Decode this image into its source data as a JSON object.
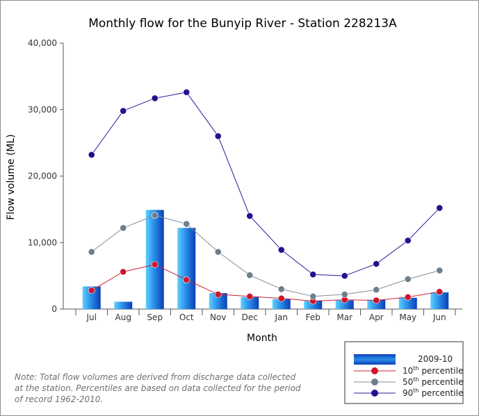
{
  "chart_data": {
    "type": "bar",
    "title": "Monthly flow for the Bunyip River - Station 228213A",
    "xlabel": "Month",
    "ylabel": "Flow volume (ML)",
    "ylim": [
      0,
      40000
    ],
    "yticks": [
      0,
      10000,
      20000,
      30000,
      40000
    ],
    "ytick_labels": [
      "0",
      "10,000",
      "20,000",
      "30,000",
      "40,000"
    ],
    "grid": false,
    "legend_position": "bottom-right",
    "categories": [
      "Jul",
      "Aug",
      "Sep",
      "Oct",
      "Nov",
      "Dec",
      "Jan",
      "Feb",
      "Mar",
      "Apr",
      "May",
      "Jun"
    ],
    "bar_series": {
      "name": "2009-10",
      "color": "#1a6fd6",
      "values": [
        3400,
        1100,
        14900,
        12200,
        2400,
        1800,
        1500,
        1200,
        1300,
        1400,
        1700,
        2500
      ]
    },
    "line_series": [
      {
        "name": "10th percentile",
        "name_base": "10",
        "name_sup": "th",
        "name_rest": " percentile",
        "line_color": "#c8202e",
        "marker_color": "#d0142a",
        "values": [
          2800,
          5600,
          6700,
          4400,
          2200,
          1900,
          1600,
          1200,
          1400,
          1300,
          1800,
          2600
        ]
      },
      {
        "name": "50th percentile",
        "name_base": "50",
        "name_sup": "th",
        "name_rest": " percentile",
        "line_color": "#7e8e98",
        "marker_color": "#6e808c",
        "values": [
          8600,
          12200,
          14100,
          12800,
          8600,
          5100,
          3000,
          1900,
          2200,
          2900,
          4500,
          5800
        ]
      },
      {
        "name": "90th percentile",
        "name_base": "90",
        "name_sup": "th",
        "name_rest": " percentile",
        "line_color": "#2a1a9c",
        "marker_color": "#2a0e8e",
        "values": [
          23200,
          29800,
          31700,
          32600,
          26000,
          14000,
          8900,
          5200,
          5000,
          6800,
          10300,
          15200
        ]
      }
    ]
  },
  "note": "Note: Total flow volumes are derived from discharge data collected at the station. Percentiles are based on data collected for the period of record 1962-2010."
}
